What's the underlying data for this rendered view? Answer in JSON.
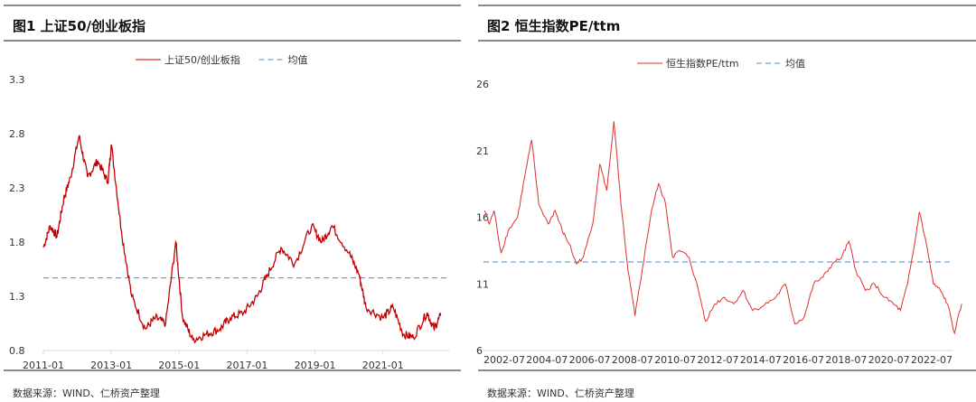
{
  "chart_data": [
    {
      "type": "line",
      "title": "图1  上证50/创业板指",
      "source": "数据来源：WIND、仁桥资产整理",
      "legend": [
        "上证50/创业板指",
        "均值"
      ],
      "legend_position": "top",
      "yticks": [
        "3.3",
        "2.8",
        "2.3",
        "1.8",
        "1.3",
        "0.8"
      ],
      "ylim": [
        0.8,
        3.3
      ],
      "xticks": [
        "2011-01",
        "2013-01",
        "2015-01",
        "2017-01",
        "2019-01",
        "2021-01"
      ],
      "mean": 1.47,
      "colors": {
        "series": "#c00000",
        "mean": "#4a8cc8"
      },
      "x": [
        2011.0,
        2011.2,
        2011.4,
        2011.6,
        2011.8,
        2012.05,
        2012.3,
        2012.6,
        2012.9,
        2013.0,
        2013.3,
        2013.6,
        2014.0,
        2014.3,
        2014.6,
        2014.9,
        2015.1,
        2015.4,
        2015.8,
        2016.2,
        2016.5,
        2016.9,
        2017.3,
        2017.6,
        2018.0,
        2018.4,
        2018.9,
        2019.2,
        2019.5,
        2020.0,
        2020.3,
        2020.5,
        2021.0,
        2021.3,
        2021.6,
        2021.9,
        2022.3,
        2022.5,
        2022.7
      ],
      "values": [
        1.75,
        1.95,
        1.85,
        2.2,
        2.4,
        2.78,
        2.4,
        2.55,
        2.35,
        2.7,
        1.9,
        1.3,
        1.0,
        1.1,
        1.05,
        1.8,
        1.1,
        0.9,
        0.95,
        1.0,
        1.1,
        1.15,
        1.3,
        1.5,
        1.75,
        1.6,
        1.95,
        1.8,
        1.95,
        1.7,
        1.5,
        1.2,
        1.1,
        1.2,
        0.95,
        0.92,
        1.15,
        1.0,
        1.12
      ]
    },
    {
      "type": "line",
      "title": "图2  恒生指数PE/ttm",
      "source": "数据来源：WIND、仁桥资产整理",
      "legend": [
        "恒生指数PE/ttm",
        "均值"
      ],
      "legend_position": "top",
      "yticks": [
        "26",
        "21",
        "16",
        "11",
        "6"
      ],
      "ylim": [
        6,
        26
      ],
      "xticks": [
        "2002-07",
        "2004-07",
        "2006-07",
        "2008-07",
        "2010-07",
        "2012-07",
        "2014-07",
        "2016-07",
        "2018-07",
        "2020-07",
        "2022-07"
      ],
      "mean": 12.64,
      "colors": {
        "series": "#e03030",
        "mean": "#4a8cc8"
      },
      "x": [
        2002.6,
        2002.8,
        2003.0,
        2003.3,
        2003.6,
        2004.0,
        2004.3,
        2004.6,
        2004.9,
        2005.3,
        2005.6,
        2005.9,
        2006.2,
        2006.5,
        2006.8,
        2007.2,
        2007.5,
        2007.8,
        2008.1,
        2008.4,
        2008.7,
        2009.0,
        2009.3,
        2009.7,
        2010.0,
        2010.3,
        2010.6,
        2010.9,
        2011.3,
        2011.7,
        2012.0,
        2012.4,
        2012.8,
        2013.2,
        2013.6,
        2014.0,
        2014.5,
        2015.0,
        2015.4,
        2015.8,
        2016.2,
        2016.6,
        2017.0,
        2017.4,
        2017.8,
        2018.1,
        2018.4,
        2018.8,
        2019.2,
        2019.6,
        2020.0,
        2020.3,
        2020.6,
        2020.9,
        2021.1,
        2021.4,
        2021.7,
        2022.0,
        2022.3,
        2022.6,
        2022.9
      ],
      "values": [
        16.5,
        15.5,
        16.5,
        13.3,
        15,
        16,
        19,
        21.8,
        17,
        15.5,
        16.5,
        15,
        14,
        12.5,
        13,
        15.5,
        20,
        18,
        23.2,
        17,
        12,
        8.6,
        12,
        16.5,
        18.5,
        17,
        13,
        13.5,
        13,
        10.5,
        8.2,
        9.5,
        10,
        9.5,
        10.5,
        9,
        9.4,
        10,
        11,
        8,
        8.5,
        11,
        11.5,
        12.5,
        13,
        14.2,
        12,
        10.5,
        11,
        10,
        9.5,
        9,
        11,
        14,
        16.4,
        14,
        11,
        10.5,
        9.5,
        7.3,
        9.5
      ]
    }
  ]
}
